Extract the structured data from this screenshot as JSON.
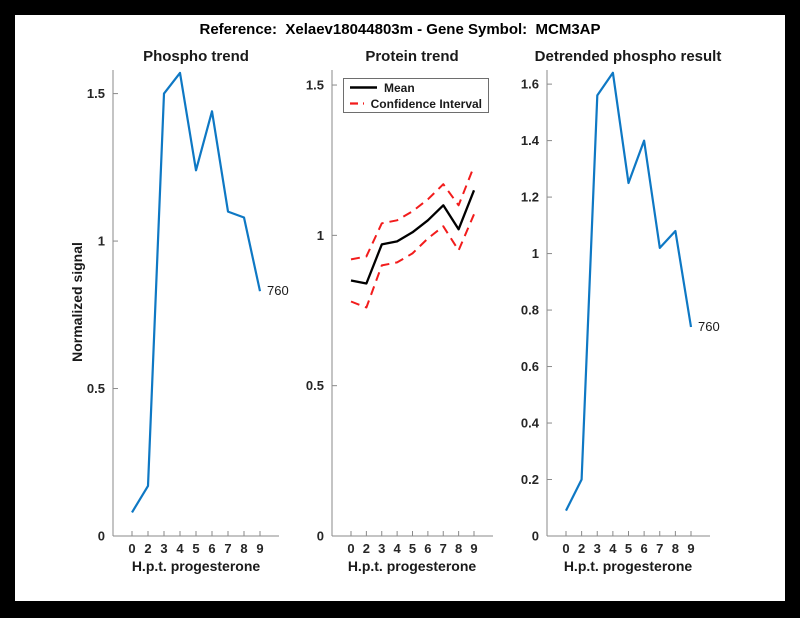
{
  "figure": {
    "title": "Reference:  Xelaev18044803m - Gene Symbol:  MCM3AP",
    "background_color": "#ffffff",
    "frame_color": "#000000"
  },
  "chart_data": [
    {
      "type": "line",
      "title": "Phospho trend",
      "xlabel": "H.p.t. progesterone",
      "ylabel": "Normalized signal",
      "categories": [
        "0",
        "2",
        "3",
        "4",
        "5",
        "6",
        "7",
        "8",
        "9"
      ],
      "ytick_labels": [
        "0",
        "0.5",
        "1",
        "1.5"
      ],
      "ylim": [
        0,
        1.58
      ],
      "grid": false,
      "series": [
        {
          "name": "phospho-signal",
          "color": "#0e78c4",
          "style": "solid",
          "width": 2.2,
          "values": [
            0.08,
            0.17,
            1.5,
            1.57,
            1.24,
            1.44,
            1.1,
            1.08,
            0.83
          ]
        }
      ],
      "annotation": {
        "text": "760"
      }
    },
    {
      "type": "line",
      "title": "Protein trend",
      "xlabel": "H.p.t. progesterone",
      "categories": [
        "0",
        "2",
        "3",
        "4",
        "5",
        "6",
        "7",
        "8",
        "9"
      ],
      "ytick_labels": [
        "0",
        "0.5",
        "1",
        "1.5"
      ],
      "ylim": [
        0,
        1.55
      ],
      "grid": false,
      "legend": {
        "position": "northwest",
        "entries": [
          {
            "label": "Mean",
            "color": "#000000",
            "style": "solid"
          },
          {
            "label": "Confidence Interval",
            "color": "#f21c1c",
            "style": "dashed"
          }
        ]
      },
      "series": [
        {
          "name": "mean",
          "color": "#000000",
          "style": "solid",
          "width": 2.3,
          "values": [
            0.85,
            0.84,
            0.97,
            0.98,
            1.01,
            1.05,
            1.1,
            1.02,
            1.15
          ]
        },
        {
          "name": "ci-upper",
          "color": "#f21c1c",
          "style": "dashed",
          "width": 2,
          "values": [
            0.92,
            0.93,
            1.04,
            1.05,
            1.08,
            1.12,
            1.17,
            1.1,
            1.23
          ]
        },
        {
          "name": "ci-lower",
          "color": "#f21c1c",
          "style": "dashed",
          "width": 2,
          "values": [
            0.78,
            0.76,
            0.9,
            0.91,
            0.94,
            0.99,
            1.03,
            0.95,
            1.07
          ]
        }
      ]
    },
    {
      "type": "line",
      "title": "Detrended phospho result",
      "xlabel": "H.p.t. progesterone",
      "categories": [
        "0",
        "2",
        "3",
        "4",
        "5",
        "6",
        "7",
        "8",
        "9"
      ],
      "ytick_labels": [
        "0",
        "0.2",
        "0.4",
        "0.6",
        "0.8",
        "1",
        "1.2",
        "1.4",
        "1.6"
      ],
      "ylim": [
        0,
        1.65
      ],
      "grid": false,
      "series": [
        {
          "name": "detrended-phospho-signal",
          "color": "#0e78c4",
          "style": "solid",
          "width": 2.2,
          "values": [
            0.09,
            0.2,
            1.56,
            1.64,
            1.25,
            1.4,
            1.02,
            1.08,
            0.74
          ]
        }
      ],
      "annotation": {
        "text": "760"
      }
    }
  ]
}
